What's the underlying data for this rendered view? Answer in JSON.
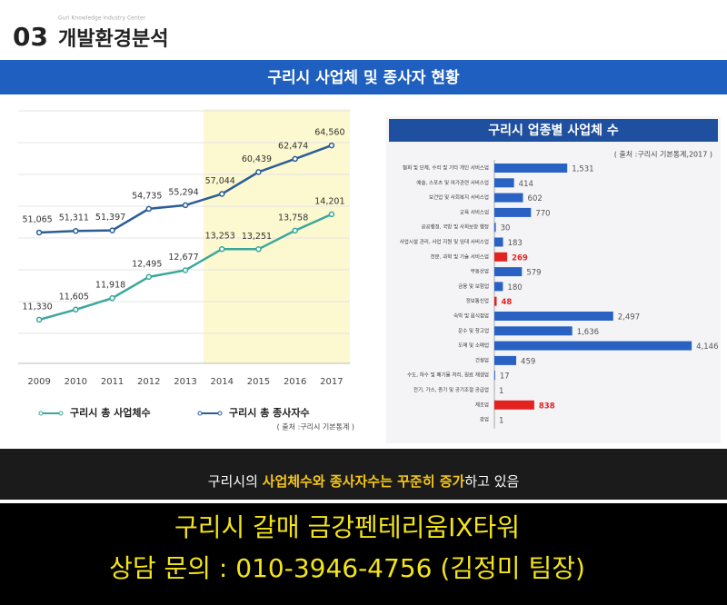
{
  "header": {
    "number": "03",
    "title": "개발환경분석",
    "watermark": "Guri Knowledge Industry Center"
  },
  "banner": "구리시 사업체 및 종사자 현황",
  "chart_data": [
    {
      "type": "line",
      "categories": [
        "2009",
        "2010",
        "2011",
        "2012",
        "2013",
        "2014",
        "2015",
        "2016",
        "2017"
      ],
      "highlight": {
        "from": "2014",
        "to": "2017",
        "color": "#fcf8cf"
      },
      "series": [
        {
          "name": "구리시 총 사업체수",
          "color": "#3ba79c",
          "ylim": [
            10140,
            17070
          ],
          "values": [
            11330,
            11605,
            11918,
            12495,
            12677,
            13253,
            13251,
            13758,
            14201
          ],
          "value_labels": [
            "11,330",
            "11,605",
            "11,918",
            "12,495",
            "12,677",
            "13,253",
            "13,251",
            "13,758",
            "14,201"
          ]
        },
        {
          "name": "구리시 총 종사자수",
          "color": "#2b5d96",
          "ylim": [
            30800,
            70200
          ],
          "values": [
            51065,
            51311,
            51397,
            54735,
            55294,
            57044,
            60439,
            62474,
            64560
          ],
          "value_labels": [
            "51,065",
            "51,311",
            "51,397",
            "54,735",
            "55,294",
            "57,044",
            "60,439",
            "62,474",
            "64,560"
          ]
        }
      ],
      "source": "( 출처 :구리시 기본통계 )"
    },
    {
      "type": "hbar",
      "title": "구리시 업종별 사업체 수",
      "source": "( 출처 :구리시 기본통계,2017 )",
      "color": "#2a62c4",
      "xlim": [
        0,
        4200
      ],
      "categories": [
        "협회 및 단체, 수리 및 기타 개인 서비스업",
        "예술, 스포츠 및 여가관련 서비스업",
        "보건업 및 사회복지 서비스업",
        "교육 서비스업",
        "공공행정, 국방 및 사회보장 행정",
        "사업시설 관리, 사업 지원 및 임대 서비스업",
        "전문, 과학 및 기술 서비스업",
        "부동산업",
        "금융 및 보험업",
        "정보통신업",
        "숙박 및 음식점업",
        "운수 및 창고업",
        "도매 및 소매업",
        "건설업",
        "수도, 하수 및 폐기물 처리, 원료 재생업",
        "전기, 가스, 증기 및 공기조절 공급업",
        "제조업",
        "광업"
      ],
      "values": [
        1531,
        414,
        602,
        770,
        30,
        183,
        269,
        579,
        180,
        48,
        2497,
        1636,
        4146,
        459,
        17,
        1,
        838,
        1
      ],
      "value_labels": [
        "1,531",
        "414",
        "602",
        "770",
        "30",
        "183",
        "269",
        "579",
        "180",
        "48",
        "2,497",
        "1,636",
        "4,146",
        "459",
        "17",
        "1",
        "838",
        "1"
      ],
      "colors": [
        "#2a62c4",
        "#2a62c4",
        "#2a62c4",
        "#2a62c4",
        "#2a62c4",
        "#2a62c4",
        "#e32222",
        "#2a62c4",
        "#2a62c4",
        "#e32222",
        "#2a62c4",
        "#2a62c4",
        "#2a62c4",
        "#2a62c4",
        "#2a62c4",
        "#2a62c4",
        "#e32222",
        "#2a62c4"
      ]
    }
  ],
  "caption": {
    "parts": [
      "구리시의 ",
      "사업체수와 종사자수는 꾸준히 증가",
      "하고 있음"
    ]
  },
  "ad": {
    "line1": "구리시 갈매 금강펜테리움IX타워",
    "line2": "상담 문의 : 010-3946-4756 (김정미 팀장)"
  }
}
